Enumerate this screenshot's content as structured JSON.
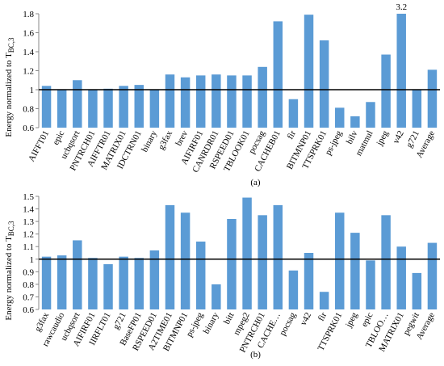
{
  "chart_data": [
    {
      "type": "bar",
      "caption": "(a)",
      "ylabel": "Energy normalized to T",
      "ylabel_subscript": "BC,3",
      "categories": [
        "AIFFT01",
        "epic",
        "ucbqsort",
        "PNTRCH01",
        "AIFFTR01",
        "MATRIX01",
        "IDCTRN01",
        "binary",
        "g3fax",
        "brev",
        "AIFIRF01",
        "CANRDR01",
        "RSPEED01",
        "TBLOOK01",
        "pocsag",
        "CACHEB01",
        "fir",
        "BITMNP01",
        "TTSPRK01",
        "ps-jpeg",
        "bilv",
        "matmul",
        "jpeg",
        "v42",
        "g721",
        "Average"
      ],
      "values": [
        1.04,
        1.0,
        1.1,
        1.0,
        1.01,
        1.04,
        1.05,
        1.0,
        1.16,
        1.13,
        1.15,
        1.16,
        1.15,
        1.15,
        1.24,
        1.72,
        0.9,
        1.79,
        1.52,
        0.81,
        0.72,
        0.87,
        1.37,
        3.2,
        1.0,
        1.21
      ],
      "value_labels": [
        null,
        null,
        null,
        null,
        null,
        null,
        null,
        null,
        null,
        null,
        null,
        null,
        null,
        null,
        null,
        null,
        null,
        null,
        null,
        null,
        null,
        null,
        null,
        "3.2",
        null,
        null
      ],
      "color": "#5b9bd5",
      "reference_line": 1,
      "ylim": [
        0.6,
        1.8
      ],
      "yticks": [
        0.6,
        0.8,
        1,
        1.2,
        1.4,
        1.6,
        1.8
      ]
    },
    {
      "type": "bar",
      "caption": "(b)",
      "ylabel": "Energy normalized to T",
      "ylabel_subscript": "BC,3",
      "categories": [
        "g3fax",
        "rawcaudio",
        "ucbqsort",
        "AIFIRF01",
        "IIRFLT01",
        "g721",
        "BaseFP01",
        "RSPEED01",
        "A2TIME01",
        "BITMNP01",
        "ps-jpeg",
        "binary",
        "bitt",
        "mpeg2",
        "PNTRCH01",
        "CACHE…",
        "pocsag",
        "v42",
        "fir",
        "TTSPRK01",
        "jpeg",
        "epic",
        "TBLOO…",
        "MATRIX01",
        "pegwit",
        "Average"
      ],
      "values": [
        1.02,
        1.03,
        1.15,
        1.01,
        0.96,
        1.02,
        1.01,
        1.07,
        1.43,
        1.37,
        1.14,
        0.8,
        1.32,
        1.49,
        1.35,
        1.43,
        0.91,
        1.05,
        0.74,
        1.37,
        1.21,
        0.99,
        1.35,
        1.1,
        0.89,
        1.13
      ],
      "color": "#5b9bd5",
      "reference_line": 1,
      "ylim": [
        0.6,
        1.5
      ],
      "yticks": [
        0.6,
        0.7,
        0.8,
        0.9,
        1,
        1.1,
        1.2,
        1.3,
        1.4,
        1.5
      ]
    }
  ]
}
